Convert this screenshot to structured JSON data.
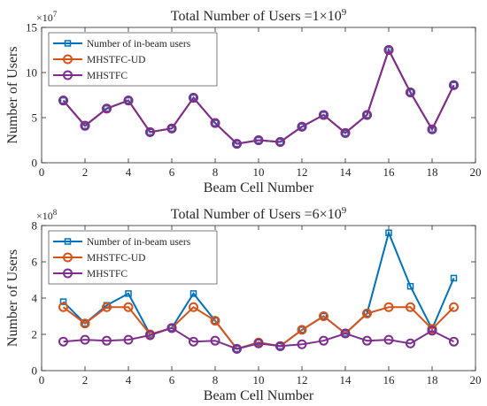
{
  "chart_data": [
    {
      "type": "line",
      "title": "Total Number of Users =1×10",
      "title_exponent": "9",
      "xlabel": "Beam Cell Number",
      "ylabel": "Number of Users",
      "y_multiplier": "×10",
      "y_multiplier_exponent": "7",
      "xlim": [
        0,
        20
      ],
      "ylim": [
        0,
        15
      ],
      "xticks": [
        "0",
        "2",
        "4",
        "6",
        "8",
        "10",
        "12",
        "14",
        "16",
        "18",
        "20"
      ],
      "yticks": [
        "0",
        "5",
        "10",
        "15"
      ],
      "grid": false,
      "legend_position": "top-left",
      "x": [
        1,
        2,
        3,
        4,
        5,
        6,
        7,
        8,
        9,
        10,
        11,
        12,
        13,
        14,
        15,
        16,
        17,
        18,
        19
      ],
      "series": [
        {
          "name": "Number of in-beam users",
          "color": "#0072BD",
          "marker": "square",
          "values": [
            6.9,
            4.1,
            6.0,
            6.9,
            3.4,
            3.8,
            7.2,
            4.4,
            2.1,
            2.5,
            2.3,
            4.0,
            5.3,
            3.3,
            5.3,
            12.5,
            7.8,
            3.7,
            8.6
          ]
        },
        {
          "name": "MHSTFC-UD",
          "color": "#D95319",
          "marker": "circle",
          "values": [
            6.9,
            4.1,
            6.0,
            6.9,
            3.4,
            3.8,
            7.2,
            4.4,
            2.1,
            2.5,
            2.3,
            4.0,
            5.3,
            3.3,
            5.3,
            12.5,
            7.8,
            3.7,
            8.6
          ]
        },
        {
          "name": "MHSTFC",
          "color": "#7E2F8E",
          "marker": "circle",
          "values": [
            6.9,
            4.1,
            6.0,
            6.9,
            3.4,
            3.8,
            7.2,
            4.4,
            2.1,
            2.5,
            2.3,
            4.0,
            5.3,
            3.3,
            5.3,
            12.5,
            7.8,
            3.7,
            8.6
          ]
        }
      ]
    },
    {
      "type": "line",
      "title": "Total Number of Users =6×10",
      "title_exponent": "9",
      "xlabel": "Beam Cell Number",
      "ylabel": "Number of Users",
      "y_multiplier": "×10",
      "y_multiplier_exponent": "8",
      "xlim": [
        0,
        20
      ],
      "ylim": [
        0,
        8
      ],
      "xticks": [
        "0",
        "2",
        "4",
        "6",
        "8",
        "10",
        "12",
        "14",
        "16",
        "18",
        "20"
      ],
      "yticks": [
        "0",
        "2",
        "4",
        "6",
        "8"
      ],
      "grid": false,
      "legend_position": "top-left",
      "x": [
        1,
        2,
        3,
        4,
        5,
        6,
        7,
        8,
        9,
        10,
        11,
        12,
        13,
        14,
        15,
        16,
        17,
        18,
        19
      ],
      "series": [
        {
          "name": "Number of in-beam users",
          "color": "#0072BD",
          "marker": "square",
          "values": [
            3.8,
            2.6,
            3.6,
            4.25,
            2.0,
            2.35,
            4.25,
            2.75,
            1.2,
            1.55,
            1.35,
            2.25,
            3.0,
            2.05,
            3.15,
            7.6,
            4.65,
            2.3,
            5.1
          ]
        },
        {
          "name": "MHSTFC-UD",
          "color": "#D95319",
          "marker": "circle",
          "values": [
            3.5,
            2.6,
            3.5,
            3.5,
            2.0,
            2.35,
            3.5,
            2.75,
            1.2,
            1.55,
            1.35,
            2.25,
            3.0,
            2.05,
            3.15,
            3.5,
            3.5,
            2.3,
            3.5
          ]
        },
        {
          "name": "MHSTFC",
          "color": "#7E2F8E",
          "marker": "circle",
          "values": [
            1.6,
            1.7,
            1.65,
            1.7,
            1.95,
            2.35,
            1.6,
            1.65,
            1.2,
            1.5,
            1.35,
            1.45,
            1.65,
            2.05,
            1.65,
            1.7,
            1.5,
            2.2,
            1.6
          ]
        }
      ]
    }
  ]
}
